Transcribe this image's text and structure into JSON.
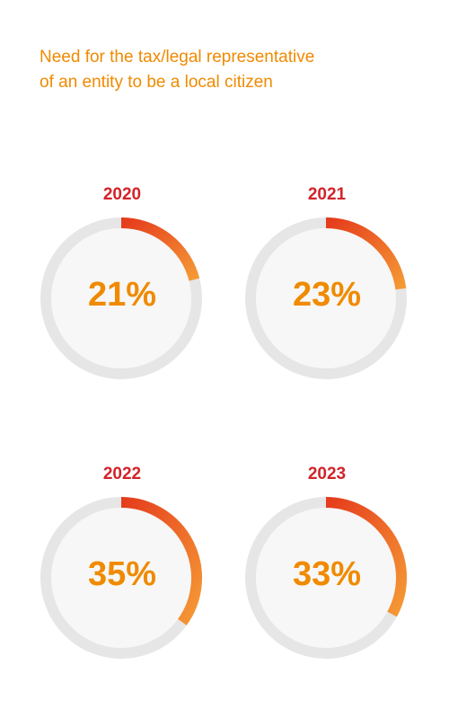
{
  "title": {
    "line1": "Need for the tax/legal representative",
    "line2": "of an entity to be a local citizen"
  },
  "colors": {
    "title": "#f08a00",
    "year": "#d2232a",
    "value": "#f08a00",
    "track": "#e6e6e6",
    "inner": "#f6f7f6",
    "arc_start": "#e53b1c",
    "arc_end": "#f59a35"
  },
  "chart_data": {
    "type": "donut",
    "title": "Need for the tax/legal representative of an entity to be a local citizen",
    "charts": [
      {
        "year": "2020",
        "value": 21,
        "label": "21%"
      },
      {
        "year": "2021",
        "value": 23,
        "label": "23%"
      },
      {
        "year": "2022",
        "value": 35,
        "label": "35%"
      },
      {
        "year": "2023",
        "value": 33,
        "label": "33%"
      }
    ]
  }
}
